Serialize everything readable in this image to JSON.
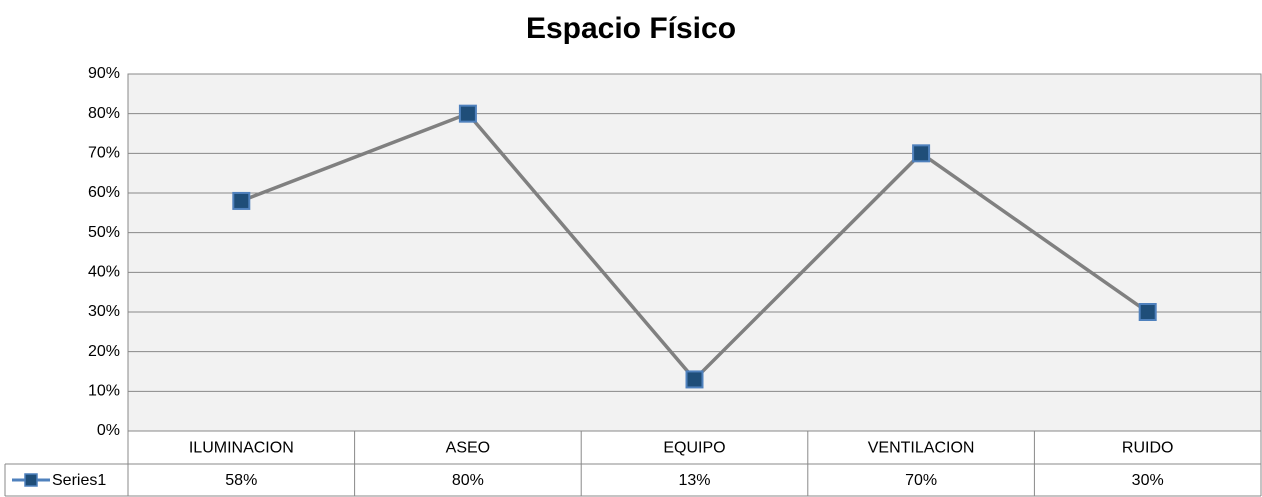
{
  "chart_data": {
    "type": "line",
    "title": "Espacio Físico",
    "categories": [
      "ILUMINACION",
      "ASEO",
      "EQUIPO",
      "VENTILACION",
      "RUIDO"
    ],
    "series": [
      {
        "name": "Series1",
        "color": "#808080",
        "marker_color": "#1f4e79",
        "values": [
          58,
          80,
          13,
          70,
          30
        ],
        "value_labels": [
          "58%",
          "80%",
          "13%",
          "70%",
          "30%"
        ]
      }
    ],
    "ylim": [
      0,
      90
    ],
    "yticks": [
      {
        "value": 0,
        "label": "0%"
      },
      {
        "value": 10,
        "label": "10%"
      },
      {
        "value": 20,
        "label": "20%"
      },
      {
        "value": 30,
        "label": "30%"
      },
      {
        "value": 40,
        "label": "40%"
      },
      {
        "value": 50,
        "label": "50%"
      },
      {
        "value": 60,
        "label": "60%"
      },
      {
        "value": 70,
        "label": "70%"
      },
      {
        "value": 80,
        "label": "80%"
      },
      {
        "value": 90,
        "label": "90%"
      }
    ],
    "grid": true
  }
}
